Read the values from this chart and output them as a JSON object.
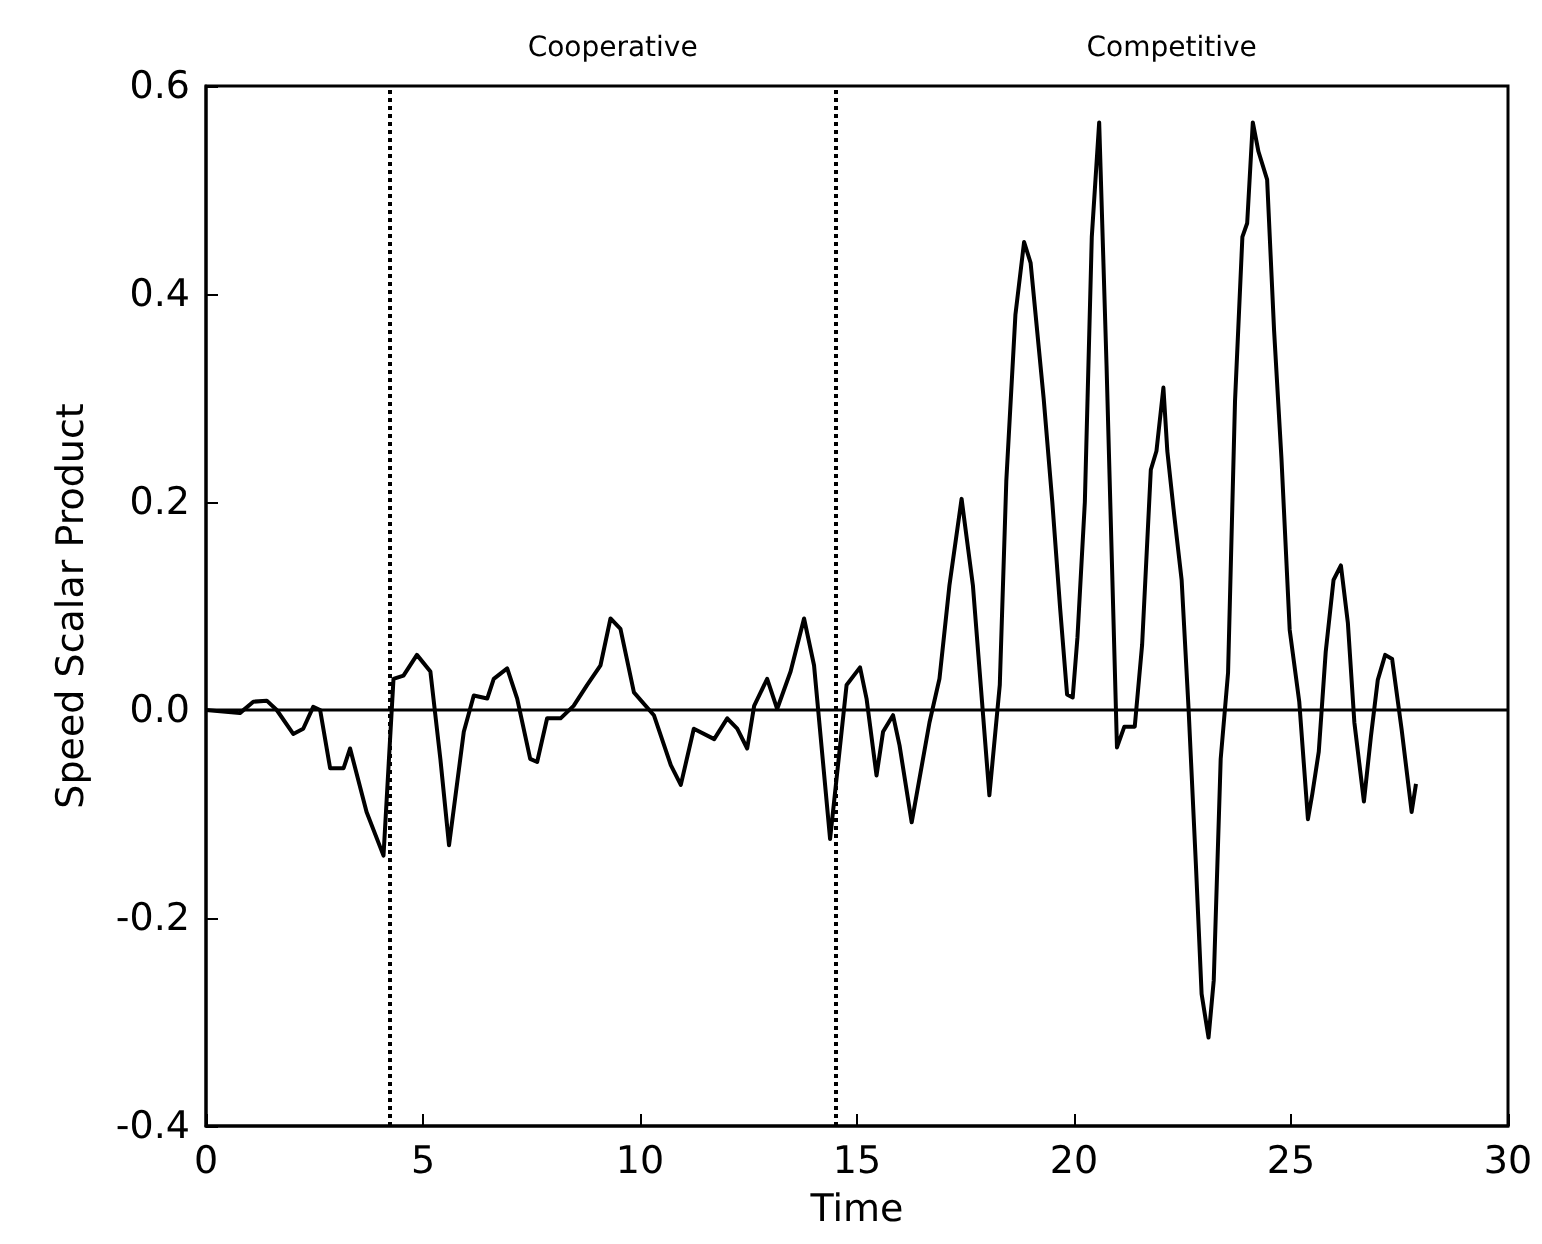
{
  "chart_data": {
    "type": "line",
    "xlabel": "Time",
    "ylabel": "Speed Scalar Product",
    "xlim": [
      0,
      30
    ],
    "xticks": [
      0,
      5,
      10,
      15,
      20,
      25,
      30
    ],
    "ylim": [
      -0.4,
      0.6
    ],
    "yticks": [
      {
        "value": -0.4,
        "label": "-0.4"
      },
      {
        "value": -0.2,
        "label": "-0.2"
      },
      {
        "value": 0,
        "label": "0.0"
      },
      {
        "value": 0.2,
        "label": "0.2"
      },
      {
        "value": 0.4,
        "label": "0.4"
      },
      {
        "value": 0.6,
        "label": "0.6"
      }
    ],
    "grid": false,
    "marker": "none",
    "line_style": "solid",
    "ref_lines": [
      {
        "axis": "y",
        "value": 0,
        "color": "#000000",
        "line_style": "solid"
      },
      {
        "axis": "x",
        "value": 4.24,
        "color": "#000000",
        "line_style": "dotted"
      },
      {
        "axis": "x",
        "value": 14.5,
        "color": "#000000",
        "line_style": "dotted"
      }
    ],
    "annotations": [
      "Cooperative",
      "Competitive"
    ],
    "series": [
      {
        "color": "#000000",
        "x": [
          0,
          0.78,
          1.09,
          1.4,
          1.63,
          2.01,
          2.24,
          2.47,
          2.63,
          2.86,
          3.17,
          3.32,
          3.7,
          4.09,
          4.32,
          4.55,
          4.86,
          5.17,
          5.4,
          5.6,
          5.94,
          6.17,
          6.48,
          6.63,
          6.94,
          7.17,
          7.47,
          7.63,
          7.86,
          8.17,
          8.47,
          8.78,
          9.09,
          9.32,
          9.55,
          9.86,
          10.32,
          10.71,
          10.94,
          11.24,
          11.71,
          12.01,
          12.24,
          12.47,
          12.63,
          12.93,
          13.16,
          13.47,
          13.78,
          14.01,
          14.38,
          14.76,
          15.07,
          15.22,
          15.45,
          15.6,
          15.83,
          15.98,
          16.26,
          16.67,
          16.9,
          17.13,
          17.41,
          17.67,
          18.05,
          18.29,
          18.44,
          18.65,
          18.85,
          19.0,
          19.3,
          19.5,
          19.68,
          19.84,
          19.97,
          20.08,
          20.25,
          20.41,
          20.58,
          20.75,
          20.99,
          21.16,
          21.4,
          21.57,
          21.77,
          21.9,
          22.06,
          22.15,
          22.31,
          22.48,
          22.64,
          22.81,
          22.94,
          23.1,
          23.22,
          23.38,
          23.55,
          23.71,
          23.88,
          23.99,
          24.12,
          24.25,
          24.45,
          24.61,
          24.78,
          24.97,
          25.19,
          25.39,
          25.49,
          25.64,
          25.8,
          25.98,
          26.15,
          26.31,
          26.46,
          26.68,
          26.84,
          27.0,
          27.17,
          27.33,
          27.55,
          27.78,
          27.88
        ],
        "values": [
          0,
          -0.003,
          0.008,
          0.009,
          0,
          -0.023,
          -0.018,
          0.003,
          0,
          -0.056,
          -0.056,
          -0.037,
          -0.098,
          -0.14,
          0.03,
          0.033,
          0.053,
          0.037,
          -0.047,
          -0.13,
          -0.021,
          0.014,
          0.011,
          0.03,
          0.04,
          0.011,
          -0.047,
          -0.05,
          -0.008,
          -0.008,
          0.004,
          0.024,
          0.043,
          0.088,
          0.078,
          0.017,
          -0.005,
          -0.053,
          -0.072,
          -0.018,
          -0.028,
          -0.008,
          -0.018,
          -0.037,
          0.004,
          0.03,
          0.001,
          0.037,
          0.088,
          0.043,
          -0.124,
          0.024,
          0.041,
          0.011,
          -0.063,
          -0.021,
          -0.005,
          -0.034,
          -0.108,
          -0.012,
          0.03,
          0.12,
          0.203,
          0.12,
          -0.082,
          0.024,
          0.22,
          0.38,
          0.45,
          0.43,
          0.3,
          0.2,
          0.098,
          0.015,
          0.012,
          0.07,
          0.2,
          0.455,
          0.565,
          0.331,
          -0.036,
          -0.016,
          -0.016,
          0.063,
          0.231,
          0.249,
          0.31,
          0.249,
          0.187,
          0.125,
          0.001,
          -0.15,
          -0.273,
          -0.315,
          -0.26,
          -0.047,
          0.036,
          0.297,
          0.455,
          0.468,
          0.565,
          0.537,
          0.51,
          0.365,
          0.242,
          0.077,
          0.008,
          -0.105,
          -0.081,
          -0.04,
          0.056,
          0.125,
          0.139,
          0.084,
          -0.012,
          -0.088,
          -0.026,
          0.029,
          0.053,
          0.049,
          -0.019,
          -0.098,
          -0.071
        ]
      }
    ]
  }
}
